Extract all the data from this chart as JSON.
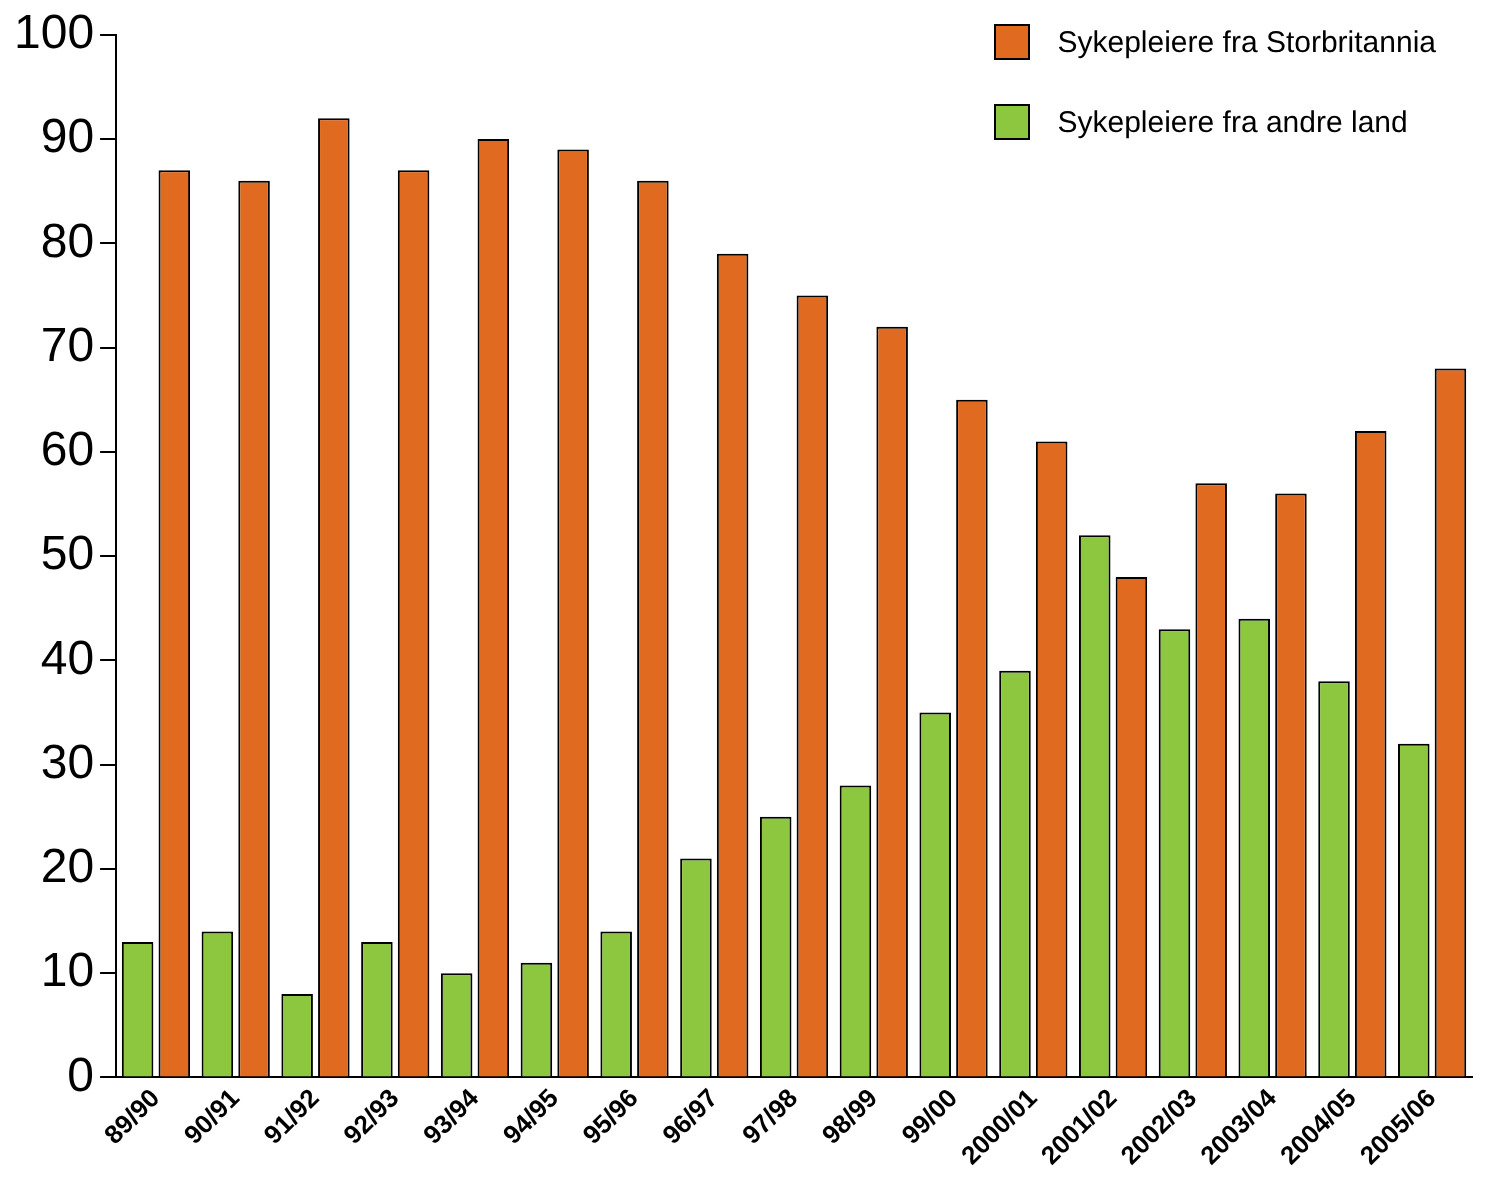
{
  "chart_data": {
    "type": "bar",
    "categories": [
      "89/90",
      "90/91",
      "91/92",
      "92/93",
      "93/94",
      "94/95",
      "95/96",
      "96/97",
      "97/98",
      "98/99",
      "99/00",
      "2000/01",
      "2001/02",
      "2002/03",
      "2003/04",
      "2004/05",
      "2005/06"
    ],
    "series": [
      {
        "name": "Sykepleiere fra andre land",
        "color": "#8dc63f",
        "values": [
          13,
          14,
          8,
          13,
          10,
          11,
          14,
          21,
          25,
          28,
          35,
          39,
          52,
          43,
          44,
          38,
          32
        ]
      },
      {
        "name": "Sykepleiere fra Storbritannia",
        "color": "#e06a1f",
        "values": [
          87,
          86,
          92,
          87,
          90,
          89,
          86,
          79,
          75,
          72,
          65,
          61,
          48,
          57,
          56,
          62,
          68
        ]
      }
    ],
    "ylim": [
      0,
      100
    ],
    "yticks": [
      0,
      10,
      20,
      30,
      40,
      50,
      60,
      70,
      80,
      90,
      100
    ],
    "grid": false,
    "legend": "top right"
  }
}
